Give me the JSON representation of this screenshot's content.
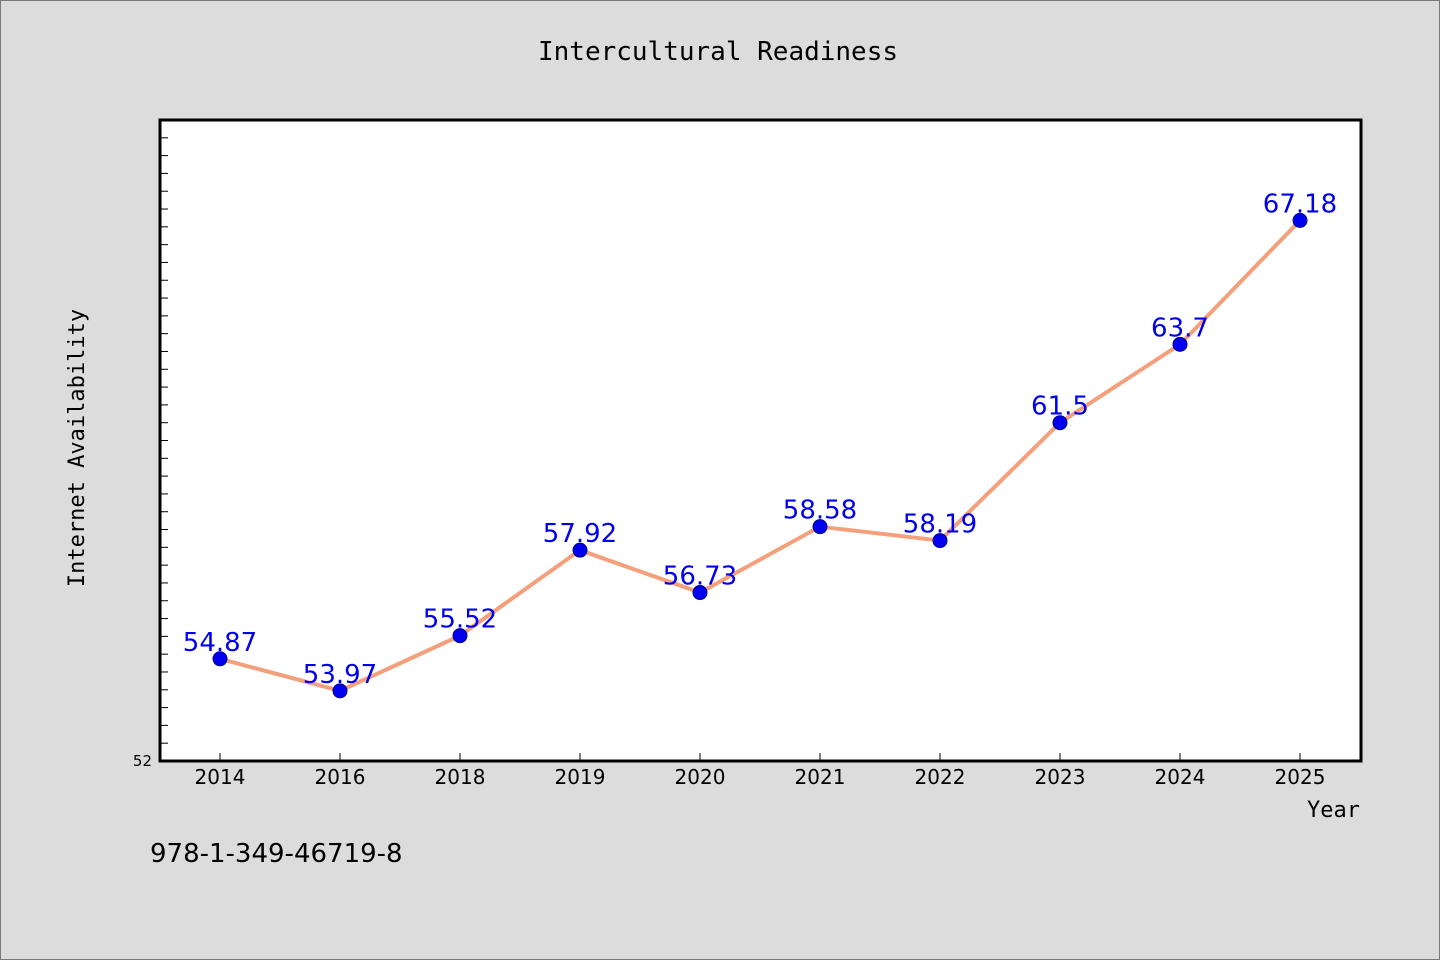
{
  "chart_data": {
    "type": "line",
    "title": "Intercultural Readiness",
    "xlabel": "Year",
    "ylabel": "Internet Availability",
    "categories": [
      "2014",
      "2016",
      "2018",
      "2019",
      "2020",
      "2021",
      "2022",
      "2023",
      "2024",
      "2025"
    ],
    "series": [
      {
        "values": [
          54.87,
          53.97,
          55.52,
          57.92,
          56.73,
          58.58,
          58.19,
          61.5,
          63.7,
          67.18
        ],
        "data_labels": [
          "54.87",
          "53.97",
          "55.52",
          "57.92",
          "56.73",
          "58.58",
          "58.19",
          "61.5",
          "63.7",
          "67.18"
        ],
        "line_color": "#f4a07c",
        "marker_color": "#0000ee"
      }
    ],
    "ylim": [
      52,
      70
    ],
    "y_tick_labels": [
      "52"
    ],
    "grid": false,
    "legend": "none",
    "label_color": "#0000ee"
  },
  "footer_text": "978-1-349-46719-8"
}
